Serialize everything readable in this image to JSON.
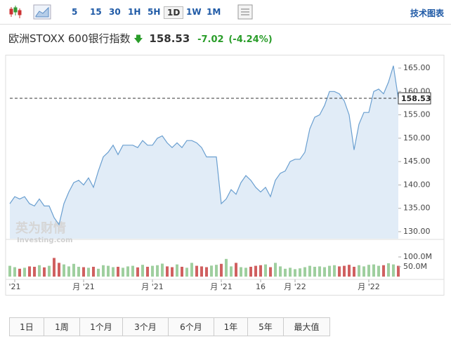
{
  "toolbar": {
    "intervals": [
      "5",
      "15",
      "30",
      "1H",
      "5H",
      "1D",
      "1W",
      "1M"
    ],
    "active": "1D",
    "link": "技术图表"
  },
  "header": {
    "name": "欧洲STOXX 600银行指数",
    "price": "158.53",
    "change": "-7.02",
    "change_pct": "(-4.24%)"
  },
  "watermark": {
    "brand": "英为财情",
    "site": "Investing.com"
  },
  "chart_data": {
    "type": "area",
    "values": [
      136,
      137.5,
      137,
      137.5,
      136,
      135.5,
      137,
      135.5,
      135.5,
      133,
      131.5,
      136,
      138.5,
      140.5,
      141,
      140,
      141.5,
      139.5,
      143,
      146,
      147,
      148.5,
      146.5,
      148.5,
      148.5,
      148.5,
      148,
      149.5,
      148.5,
      148.5,
      150,
      150.5,
      149,
      148,
      149,
      148,
      149.5,
      149.5,
      149,
      148,
      146,
      146,
      146,
      136,
      137,
      139,
      138,
      140.5,
      142,
      141,
      139.5,
      138.5,
      139.5,
      137.5,
      141,
      142.5,
      143,
      145,
      145.5,
      145.5,
      147,
      152,
      154.5,
      155,
      157,
      160,
      160,
      159.5,
      158,
      155,
      147.5,
      153,
      155.5,
      155.5,
      160,
      160.5,
      159.5,
      162,
      165.5,
      158.53
    ],
    "color": "#6a9fd0",
    "fill": "#e1ecf7",
    "ylim": [
      128.5,
      166.8
    ],
    "yticks": [
      {
        "value": 130,
        "label": "130.00"
      },
      {
        "value": 135,
        "label": "135.00"
      },
      {
        "value": 140,
        "label": "140.00"
      },
      {
        "value": 145,
        "label": "145.00"
      },
      {
        "value": 150,
        "label": "150.00"
      },
      {
        "value": 155,
        "label": "155.00"
      },
      {
        "value": 160,
        "label": "160.00"
      },
      {
        "value": 165,
        "label": "165.00"
      }
    ],
    "xlim": [
      0,
      79
    ],
    "xticks": [
      {
        "value": 1,
        "label": "'21"
      },
      {
        "value": 15,
        "label": "月 '21"
      },
      {
        "value": 29,
        "label": "月 '21"
      },
      {
        "value": 43,
        "label": "月 '21"
      },
      {
        "value": 51,
        "label": "16"
      },
      {
        "value": 58,
        "label": "月 '22"
      },
      {
        "value": 73,
        "label": "月 '22"
      }
    ],
    "volume": {
      "values": [
        55000000,
        48000000,
        40000000,
        45000000,
        52000000,
        50000000,
        58000000,
        47000000,
        55000000,
        95000000,
        70000000,
        62000000,
        52000000,
        65000000,
        50000000,
        48000000,
        45000000,
        50000000,
        40000000,
        58000000,
        55000000,
        48000000,
        50000000,
        45000000,
        52000000,
        55000000,
        47000000,
        60000000,
        50000000,
        55000000,
        58000000,
        66000000,
        52000000,
        48000000,
        62000000,
        50000000,
        45000000,
        70000000,
        55000000,
        52000000,
        48000000,
        56000000,
        60000000,
        65000000,
        90000000,
        52000000,
        70000000,
        48000000,
        45000000,
        50000000,
        55000000,
        58000000,
        62000000,
        48000000,
        70000000,
        52000000,
        40000000,
        45000000,
        38000000,
        42000000,
        48000000,
        55000000,
        50000000,
        52000000,
        48000000,
        55000000,
        58000000,
        52000000,
        55000000,
        60000000,
        50000000,
        58000000,
        52000000,
        60000000,
        62000000,
        55000000,
        58000000,
        68000000,
        62000000,
        55000000
      ],
      "up_color": "#9fcf9f",
      "down_color": "#d06060",
      "y2lim": [
        0,
        150000000
      ],
      "y2ticks": [
        {
          "value": 50000000,
          "label": "50.0M"
        },
        {
          "value": 100000000,
          "label": "100.0M"
        }
      ]
    },
    "last_price_line": true
  },
  "ranges": [
    "1日",
    "1周",
    "1个月",
    "3个月",
    "6个月",
    "1年",
    "5年",
    "最大值"
  ]
}
